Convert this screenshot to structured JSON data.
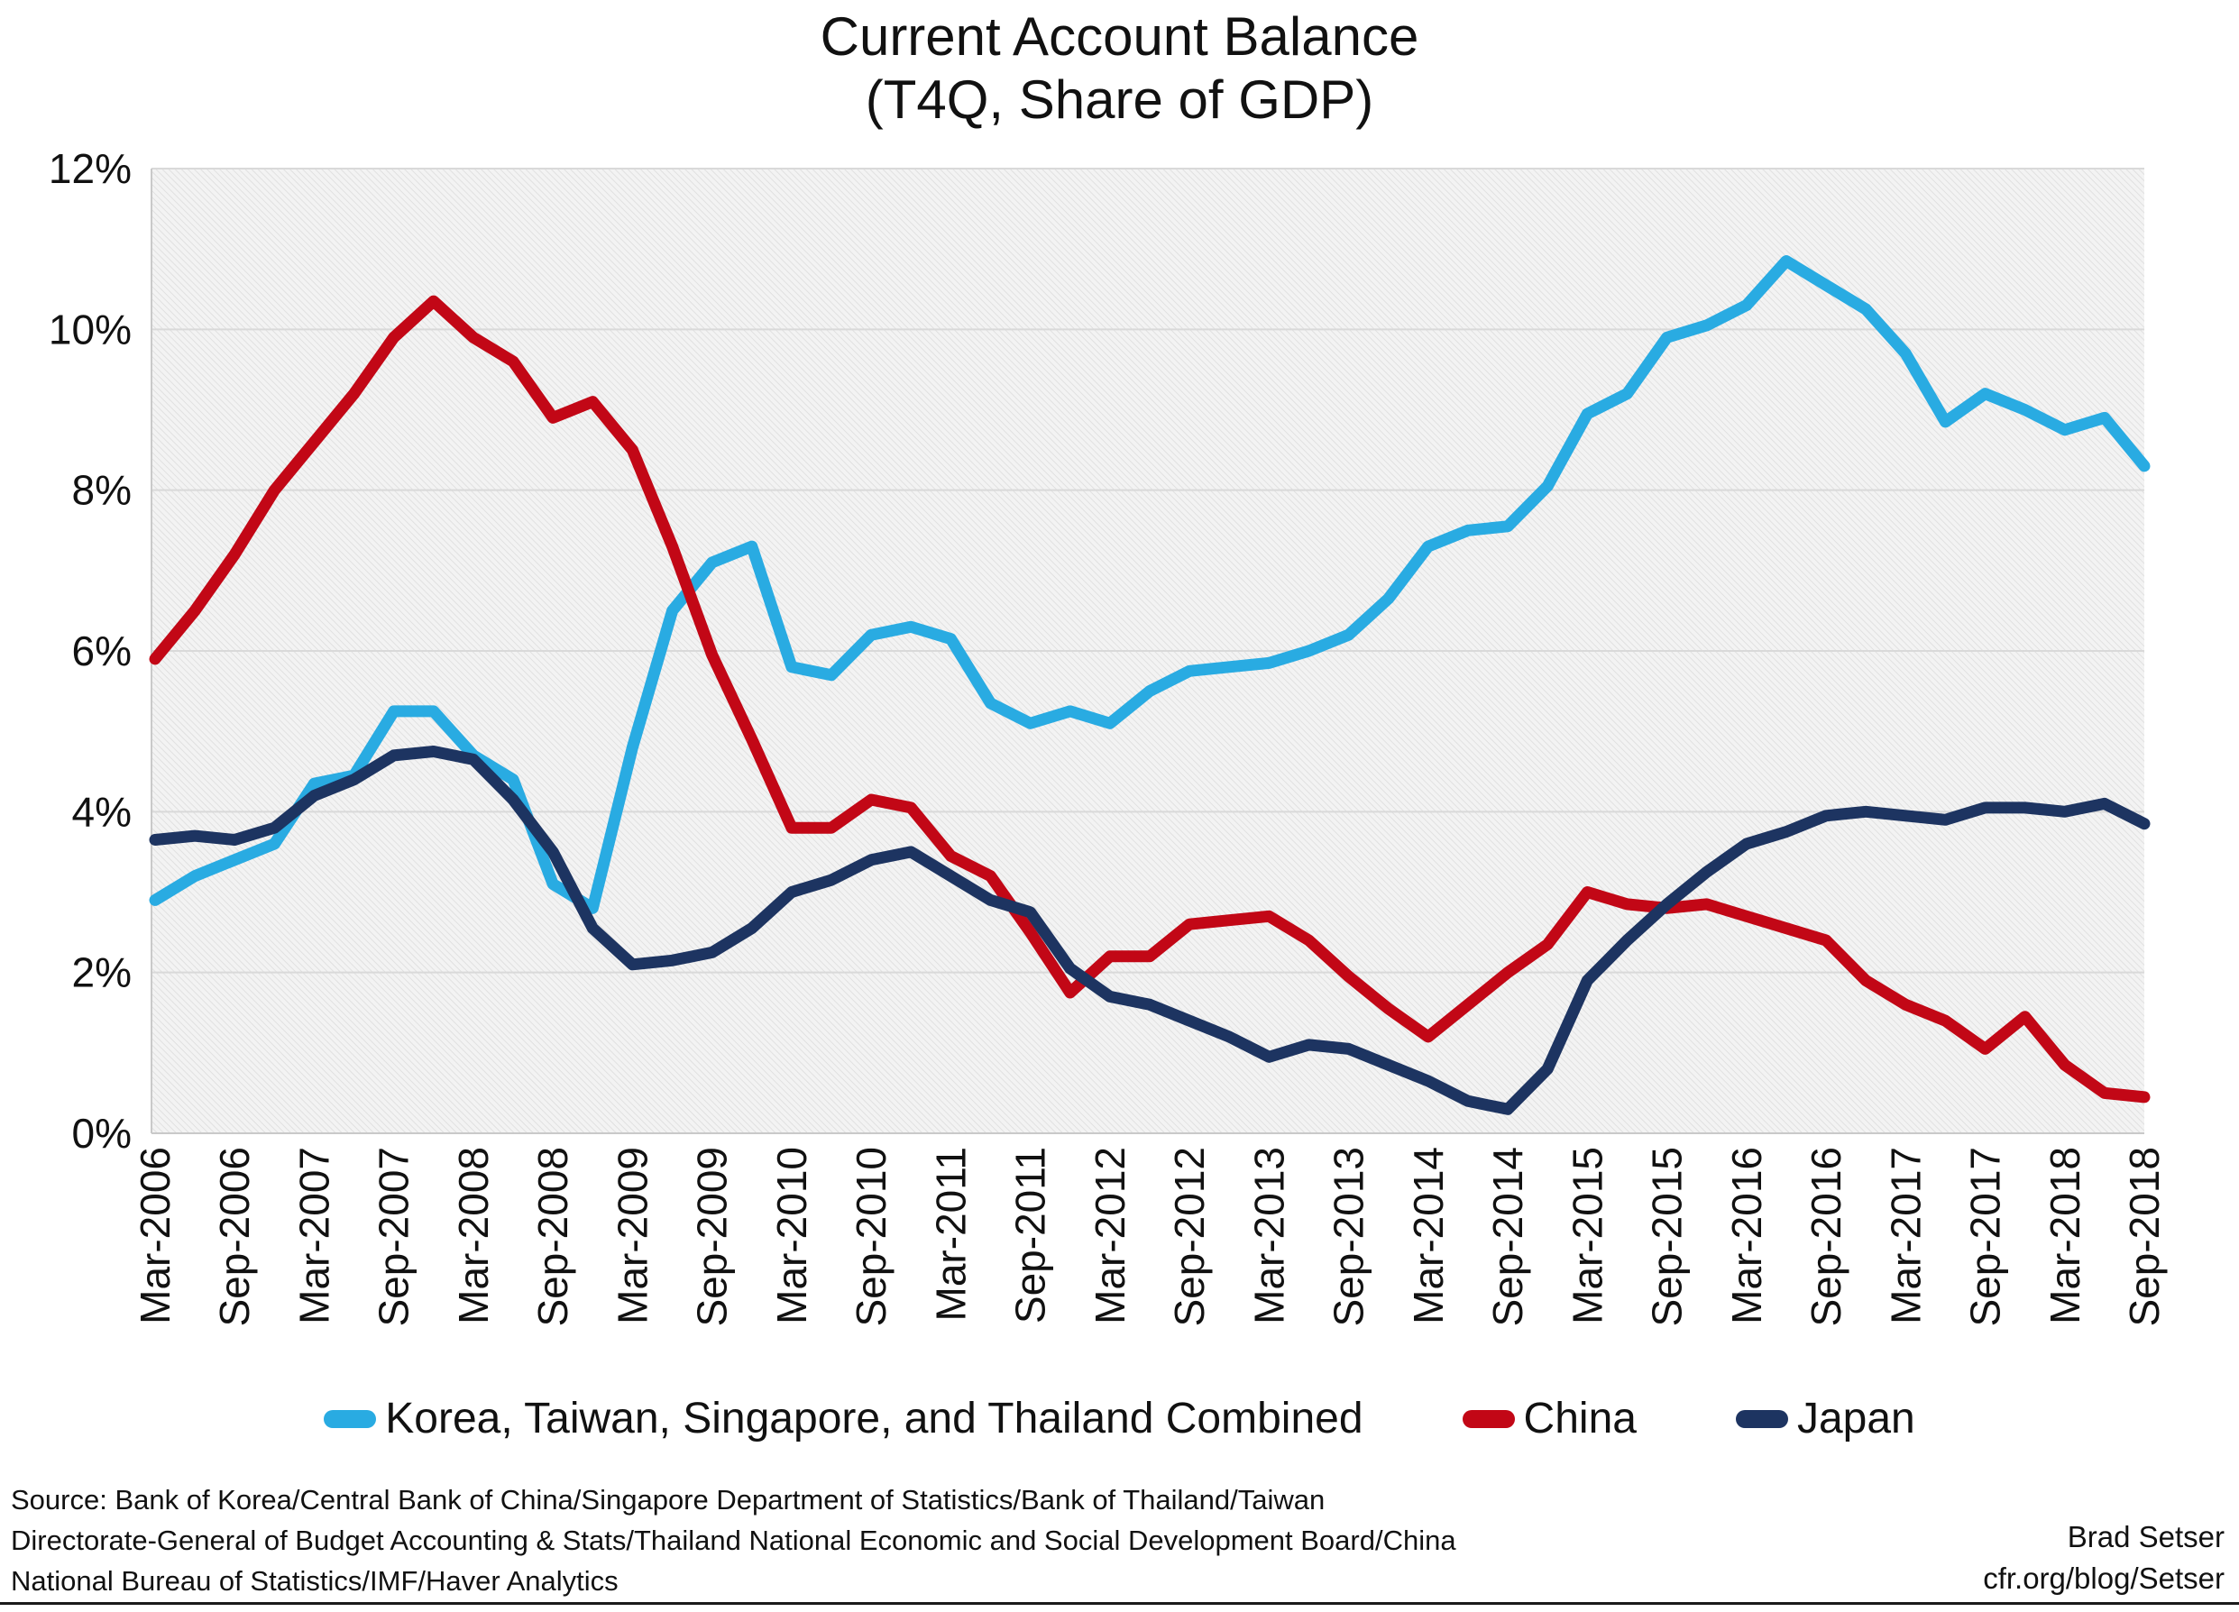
{
  "title": {
    "line1": "Current Account Balance",
    "line2": "(T4Q, Share of GDP)"
  },
  "chart_data": {
    "type": "line",
    "title": "Current Account Balance (T4Q, Share of GDP)",
    "xlabel": "",
    "ylabel": "",
    "ylim": [
      0,
      12
    ],
    "ytick_step": 2,
    "ytick_suffix": "%",
    "ytick_labels": [
      "0%",
      "2%",
      "4%",
      "6%",
      "8%",
      "10%",
      "12%"
    ],
    "x_label_every": 2,
    "grid": "horizontal",
    "legend_position": "bottom",
    "plot_background": "hatched-light-gray",
    "categories": [
      "Mar-2006",
      "Jun-2006",
      "Sep-2006",
      "Dec-2006",
      "Mar-2007",
      "Jun-2007",
      "Sep-2007",
      "Dec-2007",
      "Mar-2008",
      "Jun-2008",
      "Sep-2008",
      "Dec-2008",
      "Mar-2009",
      "Jun-2009",
      "Sep-2009",
      "Dec-2009",
      "Mar-2010",
      "Jun-2010",
      "Sep-2010",
      "Dec-2010",
      "Mar-2011",
      "Jun-2011",
      "Sep-2011",
      "Dec-2011",
      "Mar-2012",
      "Jun-2012",
      "Sep-2012",
      "Dec-2012",
      "Mar-2013",
      "Jun-2013",
      "Sep-2013",
      "Dec-2013",
      "Mar-2014",
      "Jun-2014",
      "Sep-2014",
      "Dec-2014",
      "Mar-2015",
      "Jun-2015",
      "Sep-2015",
      "Dec-2015",
      "Mar-2016",
      "Jun-2016",
      "Sep-2016",
      "Dec-2016",
      "Mar-2017",
      "Jun-2017",
      "Sep-2017",
      "Dec-2017",
      "Mar-2018",
      "Jun-2018",
      "Sep-2018"
    ],
    "series": [
      {
        "name": "Korea, Taiwan, Singapore, and Thailand Combined",
        "color": "#29ABE2",
        "values": [
          2.9,
          3.2,
          3.4,
          3.6,
          4.35,
          4.45,
          5.25,
          5.25,
          4.7,
          4.4,
          3.1,
          2.8,
          4.8,
          6.5,
          7.1,
          7.3,
          5.8,
          5.7,
          6.2,
          6.3,
          6.15,
          5.35,
          5.1,
          5.25,
          5.1,
          5.5,
          5.75,
          5.8,
          5.85,
          6.0,
          6.2,
          6.65,
          7.3,
          7.5,
          7.55,
          8.05,
          8.95,
          9.2,
          9.9,
          10.05,
          10.3,
          10.85,
          10.55,
          10.25,
          9.7,
          8.85,
          9.2,
          9.0,
          8.75,
          8.9,
          8.3
        ]
      },
      {
        "name": "China",
        "color": "#C20716",
        "values": [
          5.9,
          6.5,
          7.2,
          8.0,
          8.6,
          9.2,
          9.9,
          10.35,
          9.9,
          9.6,
          8.9,
          9.1,
          8.5,
          7.3,
          5.95,
          4.9,
          3.8,
          3.8,
          4.15,
          4.05,
          3.45,
          3.2,
          2.5,
          1.75,
          2.2,
          2.2,
          2.6,
          2.65,
          2.7,
          2.4,
          1.95,
          1.55,
          1.2,
          1.6,
          2.0,
          2.35,
          3.0,
          2.85,
          2.8,
          2.85,
          2.7,
          2.55,
          2.4,
          1.9,
          1.6,
          1.4,
          1.05,
          1.45,
          0.85,
          0.5,
          0.45
        ]
      },
      {
        "name": "Japan",
        "color": "#1D3461",
        "values": [
          3.65,
          3.7,
          3.65,
          3.8,
          4.2,
          4.4,
          4.7,
          4.75,
          4.65,
          4.15,
          3.5,
          2.55,
          2.1,
          2.15,
          2.25,
          2.55,
          3.0,
          3.15,
          3.4,
          3.5,
          3.2,
          2.9,
          2.75,
          2.05,
          1.7,
          1.6,
          1.4,
          1.2,
          0.95,
          1.1,
          1.05,
          0.85,
          0.65,
          0.4,
          0.3,
          0.8,
          1.9,
          2.4,
          2.85,
          3.25,
          3.6,
          3.75,
          3.95,
          4.0,
          3.95,
          3.9,
          4.05,
          4.05,
          4.0,
          4.1,
          3.85
        ]
      }
    ]
  },
  "footer": {
    "source_line1": "Source: Bank of Korea/Central Bank of China/Singapore Department of Statistics/Bank of Thailand/Taiwan",
    "source_line2": "Directorate-General of Budget Accounting & Stats/Thailand National Economic and Social Development Board/China",
    "source_line3": "National Bureau of Statistics/IMF/Haver Analytics",
    "credit_line1": "Brad Setser",
    "credit_line2": "cfr.org/blog/Setser"
  }
}
